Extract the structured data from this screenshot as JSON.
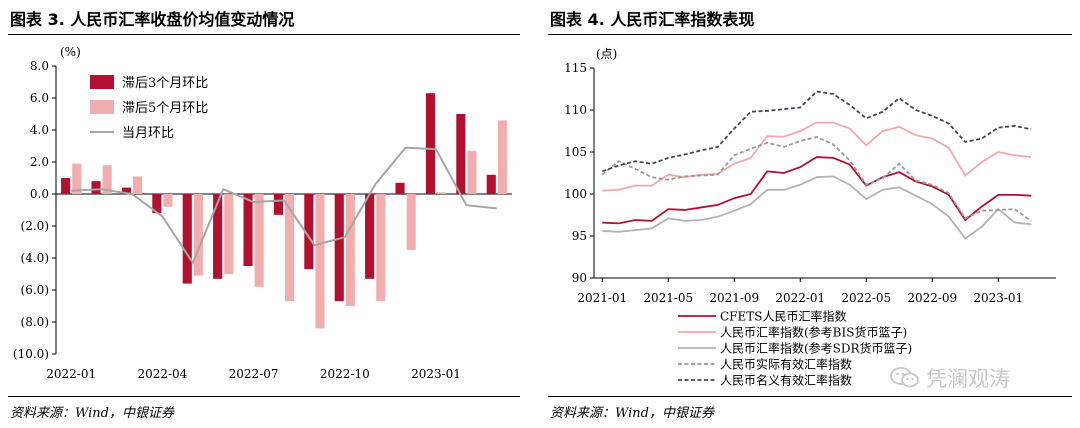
{
  "left": {
    "title": "图表 3. 人民币汇率收盘价均值变动情况",
    "source": "资料来源：Wind，中银证券"
  },
  "right": {
    "title": "图表 4. 人民币汇率指数表现",
    "source": "资料来源：Wind，中银证券"
  },
  "watermark": {
    "text": "凭澜观涛",
    "icon": "wechat-icon"
  },
  "chart_data": [
    {
      "type": "bar",
      "ylabel": "(%)",
      "ylim": [
        -10,
        8
      ],
      "yticks": [
        8,
        6,
        4,
        2,
        0,
        -2,
        -4,
        -6,
        -8,
        -10
      ],
      "ytick_labels": [
        "8.0",
        "6.0",
        "4.0",
        "2.0",
        "0.0",
        "(2.0)",
        "(4.0)",
        "(6.0)",
        "(8.0)",
        "(10.0)"
      ],
      "categories": [
        "2022-01",
        "2022-02",
        "2022-03",
        "2022-04",
        "2022-05",
        "2022-06",
        "2022-07",
        "2022-08",
        "2022-09",
        "2022-10",
        "2022-11",
        "2022-12",
        "2023-01",
        "2023-02",
        "2023-03"
      ],
      "xtick_labels": [
        "2022-01",
        "2022-04",
        "2022-07",
        "2022-10",
        "2023-01"
      ],
      "legend_position": "top-left",
      "series": [
        {
          "name": "滞后3个月环比",
          "kind": "bar",
          "color": "#b30f2e",
          "values": [
            1.0,
            0.8,
            0.4,
            -1.2,
            -5.6,
            -5.3,
            -4.5,
            -1.3,
            -4.7,
            -6.7,
            -5.3,
            0.7,
            6.3,
            5.0,
            1.2
          ]
        },
        {
          "name": "滞后5个月环比",
          "kind": "bar",
          "color": "#f0aeae",
          "values": [
            1.9,
            1.8,
            1.1,
            -0.8,
            -5.1,
            -5.0,
            -5.8,
            -6.7,
            -8.4,
            -7.0,
            -6.7,
            -3.5,
            0.1,
            2.7,
            4.6
          ]
        },
        {
          "name": "当月环比",
          "kind": "line",
          "color": "#a6a6a6",
          "values": [
            0.2,
            0.3,
            0.0,
            -1.4,
            -4.3,
            0.3,
            -0.5,
            -0.4,
            -3.2,
            -2.7,
            0.6,
            2.9,
            2.8,
            -0.7,
            -0.9
          ]
        }
      ]
    },
    {
      "type": "line",
      "ylabel": "(点)",
      "ylim": [
        90,
        115
      ],
      "yticks": [
        115,
        110,
        105,
        100,
        95,
        90
      ],
      "x": [
        "2021-01",
        "2021-02",
        "2021-03",
        "2021-04",
        "2021-05",
        "2021-06",
        "2021-07",
        "2021-08",
        "2021-09",
        "2021-10",
        "2021-11",
        "2021-12",
        "2022-01",
        "2022-02",
        "2022-03",
        "2022-04",
        "2022-05",
        "2022-06",
        "2022-07",
        "2022-08",
        "2022-09",
        "2022-10",
        "2022-11",
        "2022-12",
        "2023-01",
        "2023-02",
        "2023-03"
      ],
      "xtick_labels": [
        "2021-01",
        "2021-05",
        "2021-09",
        "2022-01",
        "2022-05",
        "2022-09",
        "2023-01"
      ],
      "legend_position": "bottom",
      "series": [
        {
          "name": "CFETS人民币汇率指数",
          "color": "#b30f2e",
          "dash": "solid",
          "values": [
            96.6,
            96.5,
            96.9,
            96.8,
            98.2,
            98.1,
            98.4,
            98.7,
            99.5,
            100.0,
            102.7,
            102.5,
            103.2,
            104.4,
            104.3,
            103.5,
            101.0,
            102.0,
            102.6,
            101.5,
            100.9,
            99.9,
            96.9,
            98.5,
            99.9,
            99.9,
            99.8
          ]
        },
        {
          "name": "人民币汇率指数(参考BIS货币篮子)",
          "color": "#f4a8a8",
          "dash": "solid",
          "values": [
            100.4,
            100.5,
            101.0,
            101.0,
            102.3,
            102.0,
            102.3,
            102.4,
            103.6,
            104.3,
            106.9,
            106.8,
            107.5,
            108.5,
            108.5,
            107.8,
            105.8,
            107.5,
            108.0,
            107.0,
            106.6,
            105.5,
            102.2,
            103.8,
            105.0,
            104.6,
            104.4
          ]
        },
        {
          "name": "人民币汇率指数(参考SDR货币篮子)",
          "color": "#b3b3b3",
          "dash": "solid",
          "values": [
            95.6,
            95.5,
            95.7,
            95.9,
            97.1,
            96.8,
            96.9,
            97.3,
            98.0,
            98.8,
            100.5,
            100.5,
            101.1,
            102.0,
            102.1,
            101.1,
            99.4,
            100.5,
            100.8,
            99.8,
            98.8,
            97.3,
            94.7,
            96.1,
            98.2,
            96.6,
            96.4
          ]
        },
        {
          "name": "人民币实际有效汇率指数",
          "color": "#999999",
          "dash": "dash",
          "values": [
            102.3,
            103.9,
            103.0,
            102.0,
            101.7,
            102.1,
            102.2,
            102.3,
            104.6,
            105.4,
            106.1,
            105.6,
            106.3,
            106.8,
            105.9,
            104.0,
            101.1,
            101.9,
            103.6,
            101.6,
            101.1,
            100.1,
            97.1,
            98.0,
            98.1,
            98.2,
            96.8
          ]
        },
        {
          "name": "人民币名义有效汇率指数",
          "color": "#3c4858",
          "dash": "dash",
          "values": [
            102.7,
            103.4,
            103.9,
            103.6,
            104.3,
            104.7,
            105.2,
            105.6,
            107.8,
            109.8,
            109.9,
            110.1,
            110.3,
            112.2,
            111.9,
            110.6,
            109.0,
            109.8,
            111.4,
            110.0,
            109.3,
            108.4,
            106.2,
            106.6,
            107.9,
            108.1,
            107.7
          ]
        }
      ]
    }
  ]
}
